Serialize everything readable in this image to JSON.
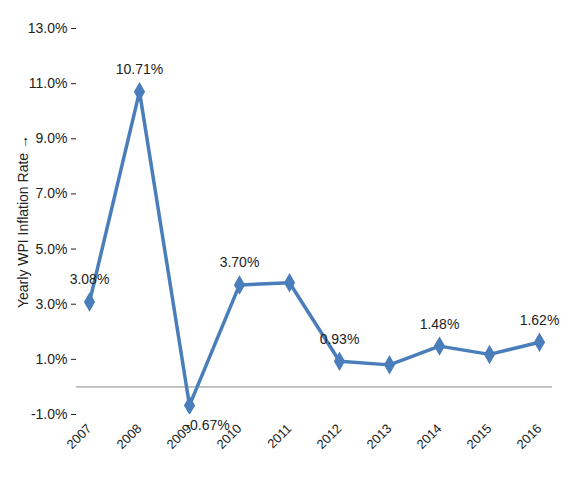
{
  "chart_data": {
    "type": "line",
    "y_label": "Yearly WPI Inflation Rate",
    "categories": [
      "2007",
      "2008",
      "2009",
      "2010",
      "2011",
      "2012",
      "2013",
      "2014",
      "2015",
      "2016"
    ],
    "values": [
      3.08,
      10.71,
      -0.67,
      3.7,
      3.78,
      0.93,
      0.8,
      1.48,
      1.18,
      1.62
    ],
    "value_labels": [
      "3.08%",
      "10.71%",
      "-0.67%",
      "3.70%",
      null,
      "0.93%",
      null,
      "1.48%",
      null,
      "1.62%"
    ],
    "data_labels": true,
    "color": "#4a7ebb",
    "marker": "diamond",
    "ylim": [
      -1,
      13
    ],
    "yticks": [
      {
        "value": -1,
        "label": "-1.0%"
      },
      {
        "value": 1,
        "label": "1.0%"
      },
      {
        "value": 3,
        "label": "3.0%"
      },
      {
        "value": 5,
        "label": "5.0%"
      },
      {
        "value": 7,
        "label": "7.0%"
      },
      {
        "value": 9,
        "label": "9.0%"
      },
      {
        "value": 11,
        "label": "11.0%"
      },
      {
        "value": 13,
        "label": "13.0%"
      }
    ],
    "grid": false
  }
}
